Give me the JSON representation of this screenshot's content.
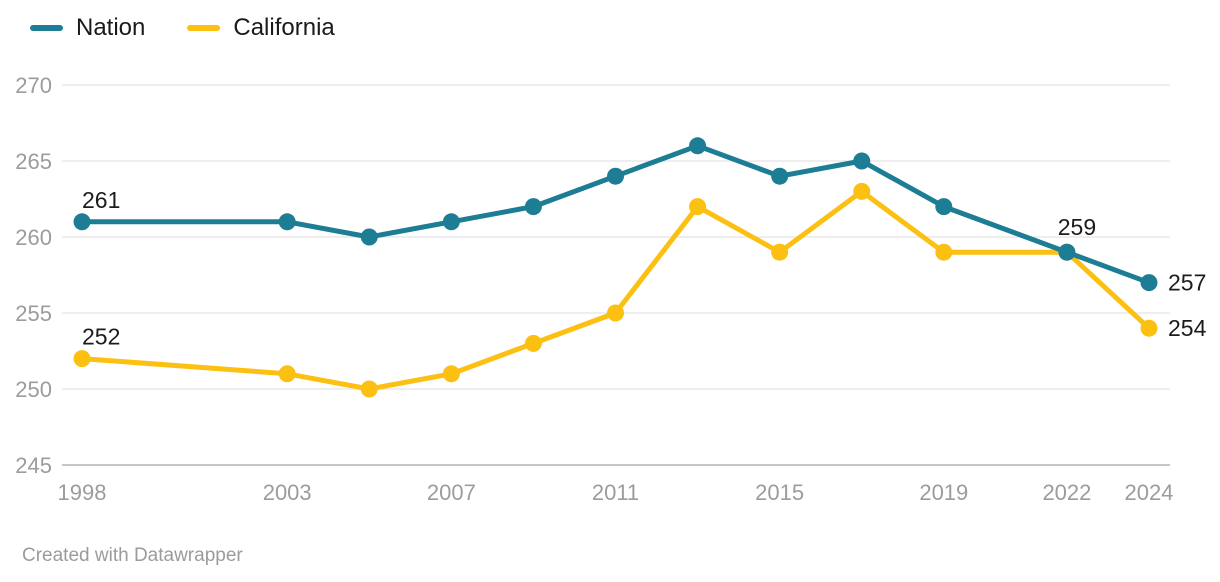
{
  "chart_data": {
    "type": "line",
    "x": [
      1998,
      2003,
      2005,
      2007,
      2009,
      2011,
      2013,
      2015,
      2017,
      2019,
      2022,
      2024
    ],
    "series": [
      {
        "name": "Nation",
        "color": "#1d7d95",
        "values": [
          261,
          261,
          260,
          261,
          262,
          264,
          266,
          264,
          265,
          262,
          259,
          257
        ]
      },
      {
        "name": "California",
        "color": "#fcc013",
        "values": [
          252,
          251,
          250,
          251,
          253,
          255,
          262,
          259,
          263,
          259,
          259,
          254
        ]
      }
    ],
    "title": "",
    "xlabel": "",
    "ylabel": "",
    "ylim": [
      245,
      270
    ],
    "y_ticks": [
      245,
      250,
      255,
      260,
      265,
      270
    ],
    "x_ticks": [
      1998,
      2003,
      2007,
      2011,
      2015,
      2019,
      2022,
      2024
    ],
    "grid": "horizontal",
    "legend_position": "top-left",
    "annotations": [
      {
        "series": "Nation",
        "year": 1998,
        "label": "261",
        "placement": "above"
      },
      {
        "series": "California",
        "year": 1998,
        "label": "252",
        "placement": "above"
      },
      {
        "series": "Nation",
        "year": 2022,
        "label": "259",
        "placement": "above-center"
      },
      {
        "series": "Nation",
        "year": 2024,
        "label": "257",
        "placement": "right"
      },
      {
        "series": "California",
        "year": 2024,
        "label": "254",
        "placement": "right"
      }
    ]
  },
  "legend": {
    "items": [
      {
        "label": "Nation",
        "color": "#1d7d95"
      },
      {
        "label": "California",
        "color": "#fcc013"
      }
    ]
  },
  "footer": {
    "text": "Created with Datawrapper"
  },
  "colors": {
    "gridline": "#e8e8e8",
    "baseline": "#c6c6c6",
    "tick_text": "#9c9c9c",
    "value_text": "#1c1c1c"
  }
}
